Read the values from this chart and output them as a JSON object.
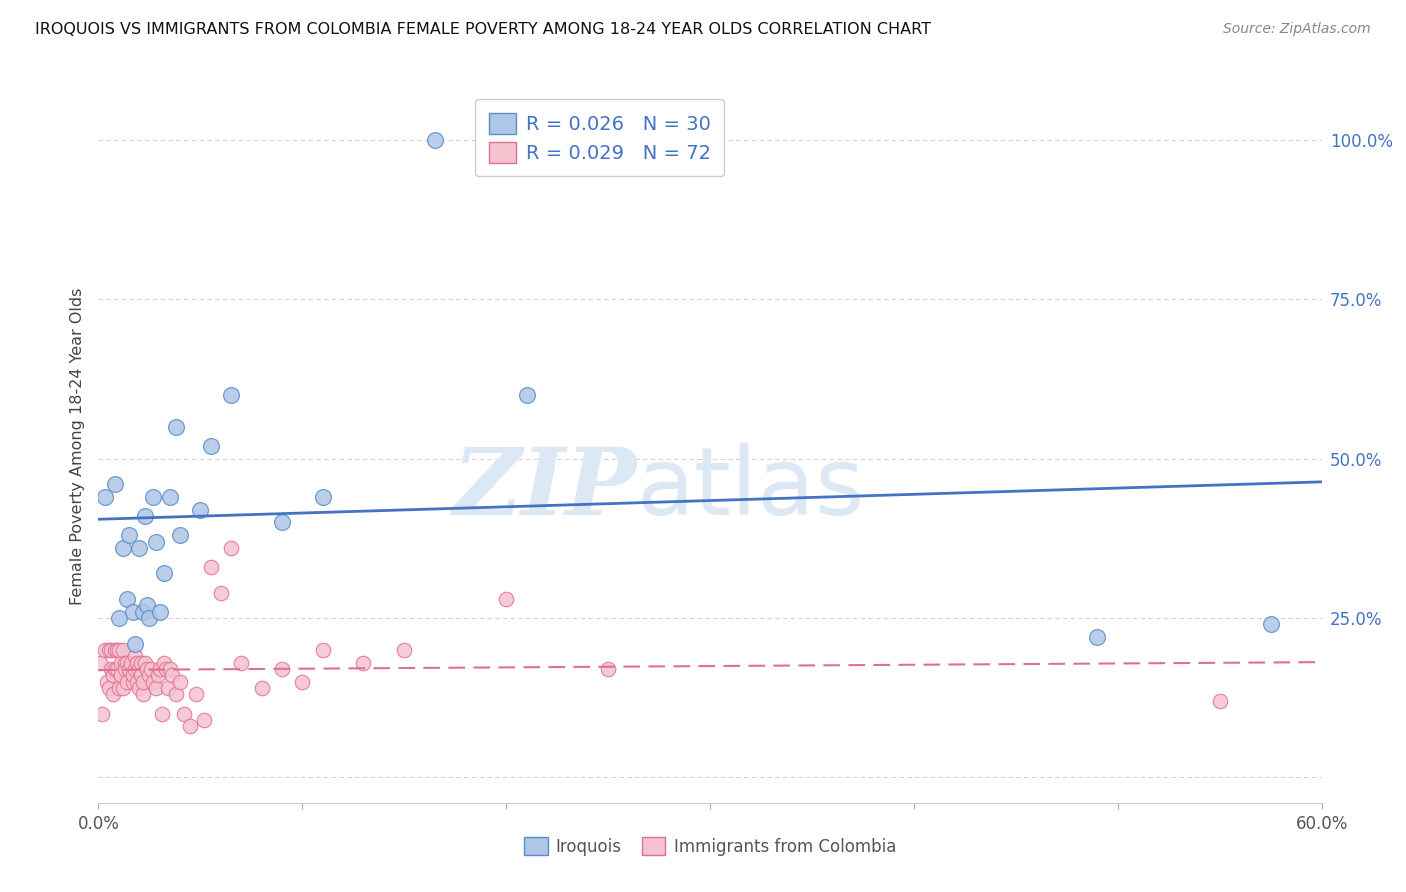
{
  "title": "IROQUOIS VS IMMIGRANTS FROM COLOMBIA FEMALE POVERTY AMONG 18-24 YEAR OLDS CORRELATION CHART",
  "source": "Source: ZipAtlas.com",
  "ylabel": "Female Poverty Among 18-24 Year Olds",
  "x_min": 0.0,
  "x_max": 0.6,
  "y_min": -0.04,
  "y_max": 1.08,
  "right_yticks": [
    0.0,
    0.25,
    0.5,
    0.75,
    1.0
  ],
  "right_yticklabels": [
    "",
    "25.0%",
    "50.0%",
    "75.0%",
    "100.0%"
  ],
  "xticks": [
    0.0,
    0.1,
    0.2,
    0.3,
    0.4,
    0.5,
    0.6
  ],
  "xticklabels": [
    "0.0%",
    "",
    "",
    "",
    "",
    "",
    "60.0%"
  ],
  "grid_color": "#cccccc",
  "background_color": "#ffffff",
  "blue_color": "#aec6e8",
  "blue_edge_color": "#5b8ec4",
  "blue_line_color": "#4472c4",
  "pink_color": "#f5c2d0",
  "pink_edge_color": "#e07090",
  "pink_line_color": "#e07090",
  "legend_r1": "R = 0.026",
  "legend_n1": "N = 30",
  "legend_r2": "R = 0.029",
  "legend_n2": "N = 72",
  "legend_text_color": "#4472c4",
  "legend_n_color": "#cc0000",
  "iroquois_x": [
    0.003,
    0.008,
    0.01,
    0.012,
    0.014,
    0.015,
    0.017,
    0.018,
    0.02,
    0.022,
    0.023,
    0.024,
    0.025,
    0.027,
    0.028,
    0.03,
    0.032,
    0.035,
    0.038,
    0.04,
    0.05,
    0.055,
    0.065,
    0.09,
    0.11,
    0.165,
    0.195,
    0.21,
    0.49,
    0.575
  ],
  "iroquois_y": [
    0.44,
    0.46,
    0.25,
    0.36,
    0.28,
    0.38,
    0.26,
    0.21,
    0.36,
    0.26,
    0.41,
    0.27,
    0.25,
    0.44,
    0.37,
    0.26,
    0.32,
    0.44,
    0.55,
    0.38,
    0.42,
    0.52,
    0.6,
    0.4,
    0.44,
    1.0,
    1.0,
    0.6,
    0.22,
    0.24
  ],
  "colombia_x": [
    0.001,
    0.002,
    0.003,
    0.004,
    0.005,
    0.005,
    0.006,
    0.006,
    0.007,
    0.007,
    0.008,
    0.008,
    0.009,
    0.009,
    0.01,
    0.01,
    0.011,
    0.011,
    0.012,
    0.012,
    0.013,
    0.013,
    0.014,
    0.014,
    0.015,
    0.015,
    0.016,
    0.017,
    0.017,
    0.018,
    0.018,
    0.019,
    0.019,
    0.02,
    0.02,
    0.021,
    0.021,
    0.022,
    0.022,
    0.023,
    0.024,
    0.025,
    0.026,
    0.027,
    0.028,
    0.029,
    0.03,
    0.031,
    0.032,
    0.033,
    0.034,
    0.035,
    0.036,
    0.038,
    0.04,
    0.042,
    0.045,
    0.048,
    0.052,
    0.055,
    0.06,
    0.065,
    0.07,
    0.08,
    0.09,
    0.1,
    0.11,
    0.13,
    0.15,
    0.2,
    0.25,
    0.55
  ],
  "colombia_y": [
    0.18,
    0.1,
    0.2,
    0.15,
    0.14,
    0.2,
    0.17,
    0.2,
    0.16,
    0.13,
    0.2,
    0.17,
    0.2,
    0.17,
    0.14,
    0.2,
    0.18,
    0.16,
    0.14,
    0.2,
    0.18,
    0.17,
    0.15,
    0.18,
    0.17,
    0.17,
    0.18,
    0.15,
    0.16,
    0.19,
    0.17,
    0.18,
    0.15,
    0.14,
    0.17,
    0.18,
    0.16,
    0.13,
    0.15,
    0.18,
    0.17,
    0.16,
    0.17,
    0.15,
    0.14,
    0.16,
    0.17,
    0.1,
    0.18,
    0.17,
    0.14,
    0.17,
    0.16,
    0.13,
    0.15,
    0.1,
    0.08,
    0.13,
    0.09,
    0.33,
    0.29,
    0.36,
    0.18,
    0.14,
    0.17,
    0.15,
    0.2,
    0.18,
    0.2,
    0.28,
    0.17,
    0.12
  ],
  "watermark_zip": "ZIP",
  "watermark_atlas": "atlas",
  "watermark_color": "#dce8f4"
}
